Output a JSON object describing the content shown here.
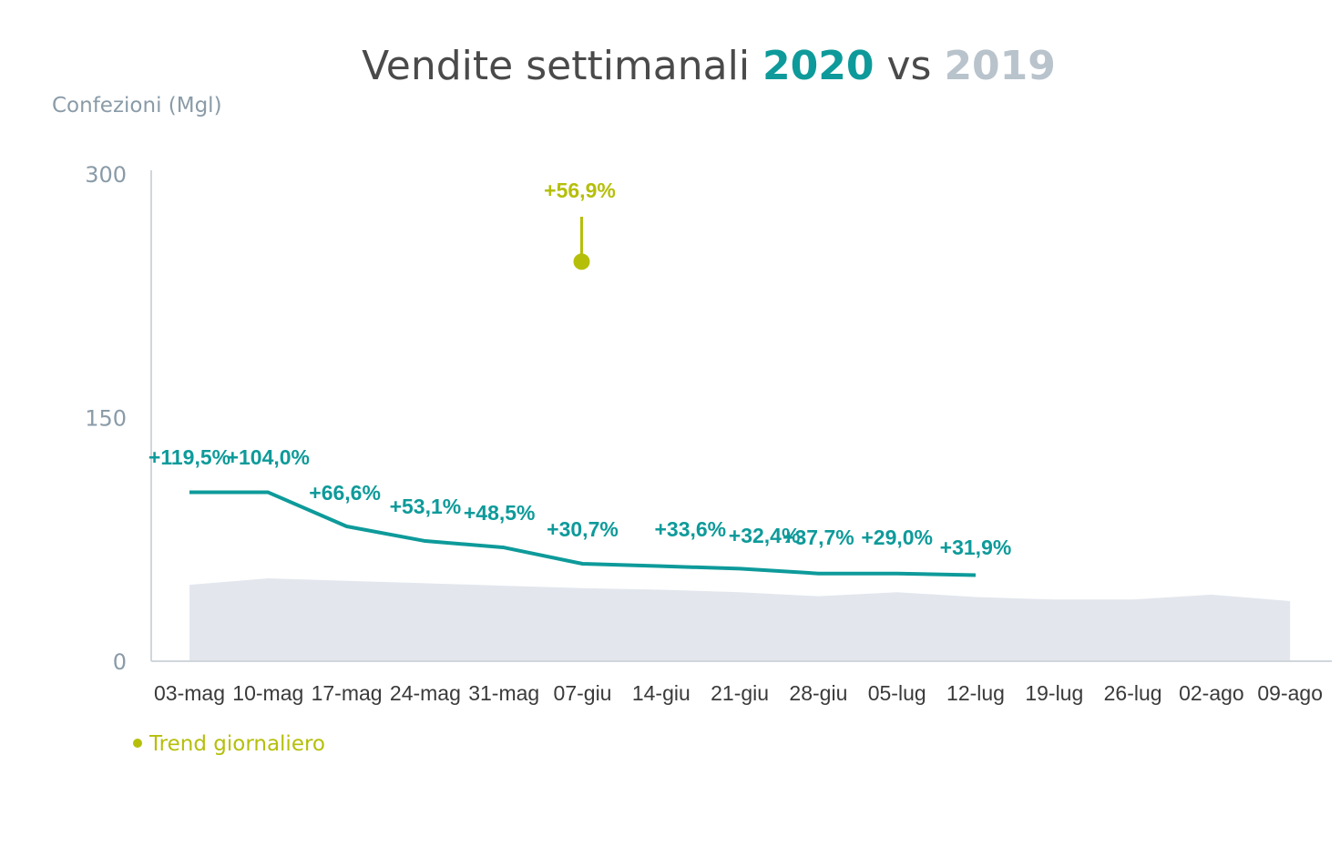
{
  "chart_data": {
    "type": "line",
    "title": {
      "prefix": "Vendite settimanali ",
      "highlight_current": "2020",
      "middle": " vs ",
      "highlight_previous": "2019"
    },
    "ylabel": "Confezioni (Mgl)",
    "ylim": [
      0,
      300
    ],
    "yticks": [
      0,
      150,
      300
    ],
    "categories": [
      "03-mag",
      "10-mag",
      "17-mag",
      "24-mag",
      "31-mag",
      "07-giu",
      "14-giu",
      "21-giu",
      "28-giu",
      "05-lug",
      "12-lug",
      "19-lug",
      "26-lug",
      "02-ago",
      "09-ago"
    ],
    "series": [
      {
        "name": "2020",
        "kind": "line",
        "color": "#0e9a9a",
        "values": [
          104,
          104,
          83,
          74,
          70,
          60,
          58.5,
          57,
          54,
          54,
          53,
          null,
          null,
          null,
          null
        ],
        "labels": [
          "+119,5%",
          "+104,0%",
          "+66,6%",
          "+53,1%",
          "+48,5%",
          "+30,7%",
          "+33,6%",
          "+32,4%",
          "+37,7%",
          "+29,0%",
          "+31,9%",
          null,
          null,
          null,
          null
        ]
      },
      {
        "name": "2019",
        "kind": "area",
        "color": "#e3e7ed",
        "values": [
          47,
          51,
          49.5,
          48,
          46.5,
          45,
          44,
          42.5,
          40,
          42.5,
          39.5,
          38,
          38,
          41,
          37
        ]
      }
    ],
    "trend": {
      "category_index": 5,
      "value": 246,
      "label": "+56,9%",
      "color": "#b5bf0a"
    },
    "legend": {
      "label": "Trend giornaliero",
      "color": "#b5bf0a",
      "position": "bottom-left"
    },
    "colors": {
      "title": "#4a4a4a",
      "current": "#0e9a9a",
      "previous": "#b8c3cc",
      "axis": "#d0d6dc"
    }
  }
}
